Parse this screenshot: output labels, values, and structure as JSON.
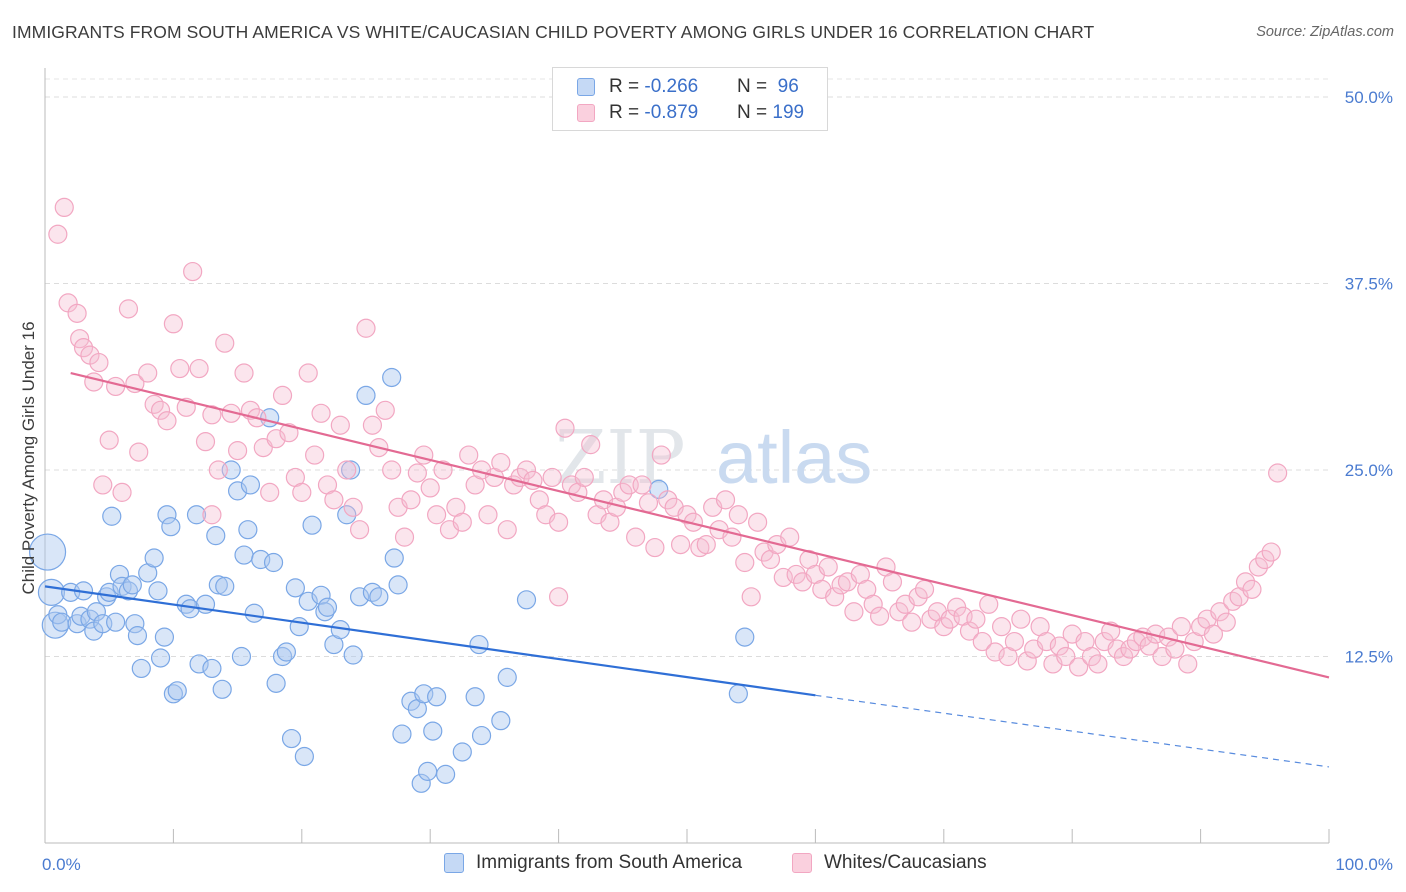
{
  "title": "IMMIGRANTS FROM SOUTH AMERICA VS WHITE/CAUCASIAN CHILD POVERTY AMONG GIRLS UNDER 16 CORRELATION CHART",
  "source": "Source: ZipAtlas.com",
  "watermark": {
    "zip": "ZIP",
    "atlas": "atlas"
  },
  "legend_top": [
    {
      "r_label": "R = ",
      "r_value": "-0.266",
      "n_label": "N = ",
      "n_value": " 96"
    },
    {
      "r_label": "R = ",
      "r_value": "-0.879",
      "n_label": "N = ",
      "n_value": "199"
    }
  ],
  "chart_data": {
    "type": "scatter",
    "ylabel": "Child Poverty Among Girls Under 16",
    "xlim": [
      0,
      100
    ],
    "ylim": [
      0,
      50
    ],
    "x_tick_labels": [
      {
        "value": 0,
        "label": "0.0%"
      },
      {
        "value": 100,
        "label": "100.0%"
      }
    ],
    "y_tick_labels": [
      {
        "value": 12.5,
        "label": "12.5%"
      },
      {
        "value": 25,
        "label": "25.0%"
      },
      {
        "value": 37.5,
        "label": "37.5%"
      },
      {
        "value": 50,
        "label": "50.0%"
      }
    ],
    "grid": true,
    "legend_position": "bottom-center",
    "series": [
      {
        "name": "Immigrants from South America",
        "color": "#7aa7e6",
        "line_color": "#2f6fd6",
        "trend": {
          "x": [
            0,
            60
          ],
          "y": [
            17.2,
            9.9
          ]
        },
        "trend_dashed": {
          "x": [
            60,
            100
          ],
          "y": [
            9.9,
            5.1
          ]
        },
        "points": [
          [
            0.2,
            19.5
          ],
          [
            0.5,
            16.8
          ],
          [
            0.8,
            14.6
          ],
          [
            1.0,
            15.3
          ],
          [
            1.3,
            14.8
          ],
          [
            2.0,
            16.8
          ],
          [
            2.5,
            14.7
          ],
          [
            2.8,
            15.2
          ],
          [
            3.0,
            16.9
          ],
          [
            3.5,
            15.0
          ],
          [
            3.8,
            14.2
          ],
          [
            4.0,
            15.5
          ],
          [
            4.5,
            14.7
          ],
          [
            4.8,
            16.5
          ],
          [
            5.0,
            16.8
          ],
          [
            5.5,
            14.8
          ],
          [
            5.2,
            21.9
          ],
          [
            5.8,
            18.0
          ],
          [
            6.0,
            17.2
          ],
          [
            6.5,
            16.9
          ],
          [
            6.8,
            17.3
          ],
          [
            7.0,
            14.7
          ],
          [
            7.5,
            11.7
          ],
          [
            8.0,
            18.1
          ],
          [
            8.5,
            19.1
          ],
          [
            8.8,
            16.9
          ],
          [
            9.0,
            12.4
          ],
          [
            9.3,
            13.8
          ],
          [
            10.0,
            10.0
          ],
          [
            10.3,
            10.2
          ],
          [
            9.5,
            22.0
          ],
          [
            9.8,
            21.2
          ],
          [
            11.0,
            16.0
          ],
          [
            11.3,
            15.7
          ],
          [
            11.8,
            22.0
          ],
          [
            12.0,
            12.0
          ],
          [
            12.5,
            16.0
          ],
          [
            13.0,
            11.7
          ],
          [
            13.3,
            20.6
          ],
          [
            13.5,
            17.3
          ],
          [
            13.8,
            10.3
          ],
          [
            14.0,
            17.2
          ],
          [
            14.5,
            25.0
          ],
          [
            15.0,
            23.6
          ],
          [
            15.3,
            12.5
          ],
          [
            15.5,
            19.3
          ],
          [
            15.8,
            21.0
          ],
          [
            16.0,
            24.0
          ],
          [
            16.3,
            15.4
          ],
          [
            16.8,
            19.0
          ],
          [
            17.5,
            28.5
          ],
          [
            17.8,
            18.8
          ],
          [
            18.0,
            10.7
          ],
          [
            18.5,
            12.5
          ],
          [
            18.8,
            12.8
          ],
          [
            19.2,
            7.0
          ],
          [
            19.5,
            17.1
          ],
          [
            19.8,
            14.5
          ],
          [
            20.2,
            5.8
          ],
          [
            20.5,
            16.2
          ],
          [
            20.8,
            21.3
          ],
          [
            21.5,
            16.6
          ],
          [
            21.8,
            15.5
          ],
          [
            22.0,
            15.8
          ],
          [
            22.5,
            13.3
          ],
          [
            23.0,
            14.3
          ],
          [
            23.5,
            22.0
          ],
          [
            23.8,
            25.0
          ],
          [
            24.0,
            12.6
          ],
          [
            24.5,
            16.5
          ],
          [
            25.0,
            30.0
          ],
          [
            25.5,
            16.8
          ],
          [
            26.0,
            16.5
          ],
          [
            27.2,
            19.1
          ],
          [
            27.5,
            17.3
          ],
          [
            27.8,
            7.3
          ],
          [
            28.5,
            9.5
          ],
          [
            29.0,
            9.0
          ],
          [
            29.3,
            4.0
          ],
          [
            29.5,
            10.0
          ],
          [
            29.8,
            4.8
          ],
          [
            30.2,
            7.5
          ],
          [
            30.5,
            9.8
          ],
          [
            31.2,
            4.6
          ],
          [
            32.5,
            6.1
          ],
          [
            33.5,
            9.8
          ],
          [
            33.8,
            13.3
          ],
          [
            34.0,
            7.2
          ],
          [
            35.5,
            8.2
          ],
          [
            36.0,
            11.1
          ],
          [
            37.5,
            16.3
          ],
          [
            47.8,
            23.7
          ],
          [
            54.5,
            13.8
          ],
          [
            54.0,
            10.0
          ],
          [
            27.0,
            31.2
          ],
          [
            7.2,
            13.9
          ]
        ]
      },
      {
        "name": "Whites/Caucasians",
        "color": "#f2a7c2",
        "line_color": "#e36a93",
        "trend": {
          "x": [
            2,
            100
          ],
          "y": [
            31.5,
            11.1
          ]
        },
        "points": [
          [
            1.0,
            40.8
          ],
          [
            1.5,
            42.6
          ],
          [
            1.8,
            36.2
          ],
          [
            2.5,
            35.5
          ],
          [
            2.7,
            33.8
          ],
          [
            3.0,
            33.2
          ],
          [
            3.5,
            32.7
          ],
          [
            3.8,
            30.9
          ],
          [
            4.2,
            32.2
          ],
          [
            4.5,
            24.0
          ],
          [
            5.0,
            27.0
          ],
          [
            5.5,
            30.6
          ],
          [
            6.0,
            23.5
          ],
          [
            6.5,
            35.8
          ],
          [
            7.0,
            30.8
          ],
          [
            7.3,
            26.2
          ],
          [
            8.0,
            31.5
          ],
          [
            8.5,
            29.4
          ],
          [
            9.0,
            29.0
          ],
          [
            9.5,
            28.3
          ],
          [
            10.0,
            34.8
          ],
          [
            10.5,
            31.8
          ],
          [
            11.0,
            29.2
          ],
          [
            11.5,
            38.3
          ],
          [
            12.0,
            31.8
          ],
          [
            12.5,
            26.9
          ],
          [
            13.0,
            28.7
          ],
          [
            13.5,
            25.0
          ],
          [
            14.0,
            33.5
          ],
          [
            14.5,
            28.8
          ],
          [
            15.0,
            26.3
          ],
          [
            15.5,
            31.5
          ],
          [
            16.0,
            29.0
          ],
          [
            16.5,
            28.5
          ],
          [
            17.0,
            26.5
          ],
          [
            17.5,
            23.5
          ],
          [
            18.0,
            27.1
          ],
          [
            18.5,
            30.0
          ],
          [
            19.0,
            27.5
          ],
          [
            19.5,
            24.5
          ],
          [
            20.0,
            23.5
          ],
          [
            20.5,
            31.5
          ],
          [
            21.0,
            26.0
          ],
          [
            21.5,
            28.8
          ],
          [
            22.0,
            24.0
          ],
          [
            22.5,
            23.0
          ],
          [
            23.0,
            28.0
          ],
          [
            23.5,
            25.0
          ],
          [
            24.0,
            22.5
          ],
          [
            24.5,
            21.0
          ],
          [
            25.0,
            34.5
          ],
          [
            25.5,
            28.0
          ],
          [
            26.0,
            26.5
          ],
          [
            26.5,
            29.0
          ],
          [
            27.0,
            25.0
          ],
          [
            27.5,
            22.5
          ],
          [
            28.0,
            20.5
          ],
          [
            28.5,
            23.0
          ],
          [
            29.0,
            24.8
          ],
          [
            29.5,
            26.0
          ],
          [
            30.0,
            23.8
          ],
          [
            30.5,
            22.0
          ],
          [
            31.0,
            25.0
          ],
          [
            31.5,
            21.0
          ],
          [
            32.0,
            22.5
          ],
          [
            32.5,
            21.5
          ],
          [
            33.0,
            26.0
          ],
          [
            33.5,
            24.0
          ],
          [
            34.0,
            25.0
          ],
          [
            34.5,
            22.0
          ],
          [
            35.0,
            24.5
          ],
          [
            35.5,
            25.5
          ],
          [
            36.0,
            21.0
          ],
          [
            36.5,
            24.0
          ],
          [
            37.0,
            24.5
          ],
          [
            37.5,
            25.0
          ],
          [
            38.0,
            24.3
          ],
          [
            38.5,
            23.0
          ],
          [
            39.0,
            22.0
          ],
          [
            39.5,
            24.5
          ],
          [
            40.0,
            21.5
          ],
          [
            40.5,
            27.8
          ],
          [
            41.0,
            24.0
          ],
          [
            41.5,
            23.5
          ],
          [
            42.0,
            24.5
          ],
          [
            42.5,
            26.7
          ],
          [
            43.0,
            22.0
          ],
          [
            43.5,
            23.0
          ],
          [
            44.0,
            21.5
          ],
          [
            44.5,
            22.5
          ],
          [
            45.0,
            23.5
          ],
          [
            45.5,
            24.0
          ],
          [
            46.0,
            20.5
          ],
          [
            46.5,
            24.0
          ],
          [
            47.0,
            22.8
          ],
          [
            47.5,
            19.8
          ],
          [
            48.0,
            26.0
          ],
          [
            48.5,
            23.0
          ],
          [
            49.0,
            22.5
          ],
          [
            49.5,
            20.0
          ],
          [
            50.0,
            22.0
          ],
          [
            50.5,
            21.5
          ],
          [
            51.0,
            19.8
          ],
          [
            51.5,
            20.0
          ],
          [
            52.0,
            22.5
          ],
          [
            52.5,
            21.0
          ],
          [
            53.0,
            23.0
          ],
          [
            53.5,
            20.5
          ],
          [
            54.0,
            22.0
          ],
          [
            54.5,
            18.8
          ],
          [
            55.0,
            16.5
          ],
          [
            55.5,
            21.5
          ],
          [
            56.0,
            19.5
          ],
          [
            56.5,
            19.0
          ],
          [
            57.0,
            20.0
          ],
          [
            57.5,
            17.8
          ],
          [
            58.0,
            20.5
          ],
          [
            58.5,
            18.0
          ],
          [
            59.0,
            17.5
          ],
          [
            59.5,
            19.0
          ],
          [
            60.0,
            18.0
          ],
          [
            60.5,
            17.0
          ],
          [
            61.0,
            18.5
          ],
          [
            61.5,
            16.5
          ],
          [
            62.0,
            17.3
          ],
          [
            62.5,
            17.5
          ],
          [
            63.0,
            15.5
          ],
          [
            63.5,
            18.0
          ],
          [
            64.0,
            17.0
          ],
          [
            64.5,
            16.0
          ],
          [
            65.0,
            15.2
          ],
          [
            65.5,
            18.5
          ],
          [
            66.0,
            17.5
          ],
          [
            66.5,
            15.5
          ],
          [
            67.0,
            16.0
          ],
          [
            67.5,
            14.8
          ],
          [
            68.0,
            16.5
          ],
          [
            68.5,
            17.0
          ],
          [
            69.0,
            15.0
          ],
          [
            69.5,
            15.5
          ],
          [
            70.0,
            14.5
          ],
          [
            70.5,
            15.0
          ],
          [
            71.0,
            15.8
          ],
          [
            71.5,
            15.2
          ],
          [
            72.0,
            14.2
          ],
          [
            72.5,
            15.0
          ],
          [
            73.0,
            13.5
          ],
          [
            73.5,
            16.0
          ],
          [
            74.0,
            12.8
          ],
          [
            74.5,
            14.5
          ],
          [
            75.0,
            12.5
          ],
          [
            75.5,
            13.5
          ],
          [
            76.0,
            15.0
          ],
          [
            76.5,
            12.2
          ],
          [
            77.0,
            13.0
          ],
          [
            77.5,
            14.5
          ],
          [
            78.0,
            13.5
          ],
          [
            78.5,
            12.0
          ],
          [
            79.0,
            13.2
          ],
          [
            79.5,
            12.5
          ],
          [
            80.0,
            14.0
          ],
          [
            80.5,
            11.8
          ],
          [
            81.0,
            13.5
          ],
          [
            81.5,
            12.5
          ],
          [
            82.0,
            12.0
          ],
          [
            82.5,
            13.5
          ],
          [
            83.0,
            14.2
          ],
          [
            83.5,
            13.0
          ],
          [
            84.0,
            12.5
          ],
          [
            84.5,
            13.0
          ],
          [
            85.0,
            13.5
          ],
          [
            85.5,
            13.8
          ],
          [
            86.0,
            13.2
          ],
          [
            86.5,
            14.0
          ],
          [
            87.0,
            12.5
          ],
          [
            87.5,
            13.8
          ],
          [
            88.0,
            13.0
          ],
          [
            88.5,
            14.5
          ],
          [
            89.0,
            12.0
          ],
          [
            89.5,
            13.5
          ],
          [
            90.0,
            14.5
          ],
          [
            90.5,
            15.0
          ],
          [
            91.0,
            14.0
          ],
          [
            91.5,
            15.5
          ],
          [
            92.0,
            14.8
          ],
          [
            92.5,
            16.2
          ],
          [
            93.0,
            16.5
          ],
          [
            93.5,
            17.5
          ],
          [
            94.0,
            17.0
          ],
          [
            94.5,
            18.5
          ],
          [
            95.0,
            19.0
          ],
          [
            95.5,
            19.5
          ],
          [
            96.0,
            24.8
          ],
          [
            13.0,
            22.0
          ],
          [
            40.0,
            16.5
          ]
        ]
      }
    ]
  }
}
